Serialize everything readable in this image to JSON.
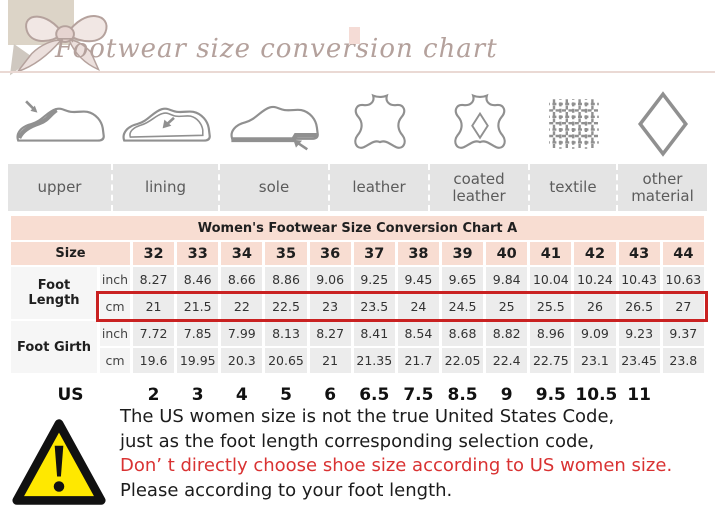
{
  "header": {
    "title": "Footwear size conversion chart",
    "decoration": "ribbon-bow"
  },
  "materials": [
    {
      "icon": "shoe-upper-icon",
      "label": "upper"
    },
    {
      "icon": "shoe-lining-icon",
      "label": "lining"
    },
    {
      "icon": "shoe-sole-icon",
      "label": "sole"
    },
    {
      "icon": "leather-hide-icon",
      "label": "leather"
    },
    {
      "icon": "coated-leather-hide-icon",
      "label": "coated leather"
    },
    {
      "icon": "textile-weave-icon",
      "label": "textile"
    },
    {
      "icon": "diamond-material-icon",
      "label": "other material"
    }
  ],
  "chart_data": {
    "type": "table",
    "title": "Women's Footwear Size Conversion Chart A",
    "size_label": "Size",
    "columns": [
      "32",
      "33",
      "34",
      "35",
      "36",
      "37",
      "38",
      "39",
      "40",
      "41",
      "42",
      "43",
      "44"
    ],
    "rows": [
      {
        "group": "Foot Length",
        "unit": "inch",
        "highlighted": false,
        "values": [
          "8.27",
          "8.46",
          "8.66",
          "8.86",
          "9.06",
          "9.25",
          "9.45",
          "9.65",
          "9.84",
          "10.04",
          "10.24",
          "10.43",
          "10.63"
        ]
      },
      {
        "group": "Foot Length",
        "unit": "cm",
        "highlighted": true,
        "values": [
          "21",
          "21.5",
          "22",
          "22.5",
          "23",
          "23.5",
          "24",
          "24.5",
          "25",
          "25.5",
          "26",
          "26.5",
          "27"
        ]
      },
      {
        "group": "Foot Girth",
        "unit": "inch",
        "highlighted": false,
        "values": [
          "7.72",
          "7.85",
          "7.99",
          "8.13",
          "8.27",
          "8.41",
          "8.54",
          "8.68",
          "8.82",
          "8.96",
          "9.09",
          "9.23",
          "9.37"
        ]
      },
      {
        "group": "Foot Girth",
        "unit": "cm",
        "highlighted": false,
        "values": [
          "19.6",
          "19.95",
          "20.3",
          "20.65",
          "21",
          "21.35",
          "21.7",
          "22.05",
          "22.4",
          "22.75",
          "23.1",
          "23.45",
          "23.8"
        ]
      }
    ],
    "us_row": {
      "label": "US",
      "values": [
        "2",
        "3",
        "4",
        "5",
        "6",
        "6.5",
        "7.5",
        "8.5",
        "9",
        "9.5",
        "10.5",
        "11",
        ""
      ]
    }
  },
  "warning": {
    "lines": [
      {
        "text": "The US women size is not the true United States Code,",
        "emphasis": "normal"
      },
      {
        "text": "just as the foot length corresponding selection code,",
        "emphasis": "normal"
      },
      {
        "text": "Don’ t directly choose shoe size according to US women size.",
        "emphasis": "red"
      },
      {
        "text": "Please according to your foot length.",
        "emphasis": "normal"
      }
    ]
  },
  "colors": {
    "table_header_bg": "#f8ddd2",
    "cell_bg": "#ececec",
    "materials_row_bg": "#e4e4e4",
    "highlight_border": "#c92121",
    "warning_red": "#d93232",
    "warning_yellow": "#ffe800",
    "script_title": "#b4a19c",
    "icon_gray": "#909090"
  }
}
